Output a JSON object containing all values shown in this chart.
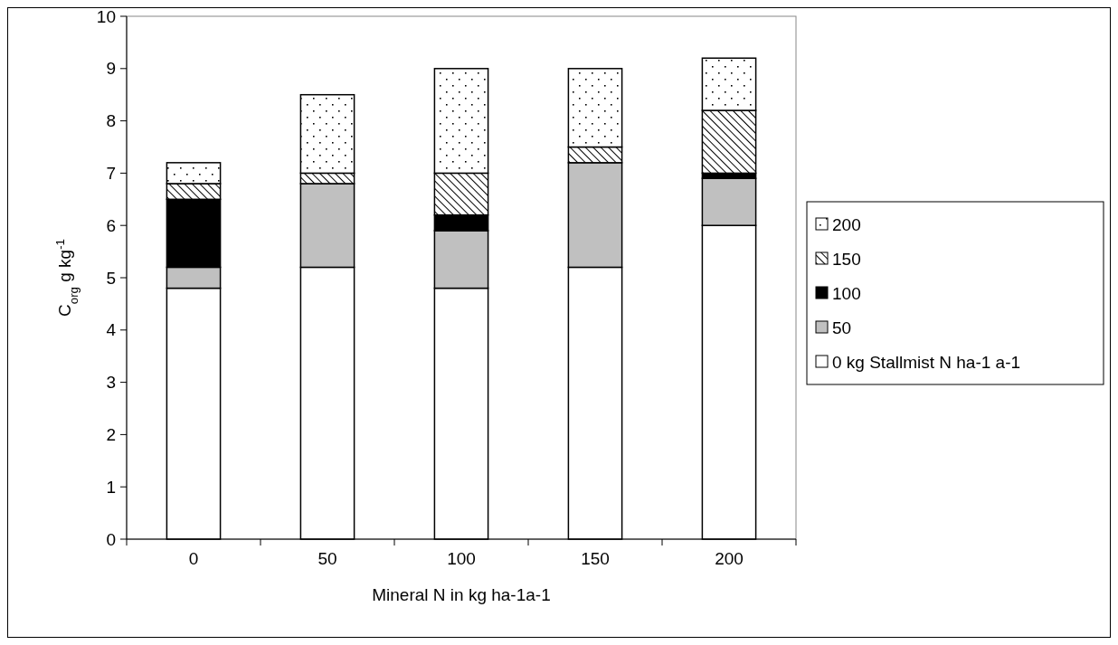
{
  "chart_data": {
    "type": "bar",
    "stacked": true,
    "xlabel": "Mineral N in kg ha-1a-1",
    "ylabel": "C$_{org}$ g kg$^{-1}$",
    "categories": [
      "0",
      "50",
      "100",
      "150",
      "200"
    ],
    "series": [
      {
        "name": "0 kg Stallmist N ha-1 a-1",
        "color": "#ffffff",
        "values": [
          4.8,
          5.2,
          4.8,
          5.2,
          6.0
        ]
      },
      {
        "name": "50",
        "color": "#c0c0c0",
        "values": [
          0.4,
          1.6,
          1.1,
          2.0,
          0.9
        ]
      },
      {
        "name": "100",
        "color": "#000000",
        "values": [
          1.3,
          0,
          0.3,
          0,
          0.1
        ]
      },
      {
        "name": "150",
        "color": "#000000",
        "values": [
          0.3,
          0.2,
          0.8,
          0.3,
          1.2
        ]
      },
      {
        "name": "200",
        "color": "#000000",
        "values": [
          0.4,
          1.5,
          2.0,
          1.5,
          1.0
        ]
      }
    ],
    "ylim": [
      0,
      10
    ],
    "yticks": [
      0,
      1,
      2,
      3,
      4,
      5,
      6,
      7,
      8,
      9,
      10
    ],
    "grid": false,
    "legend": "right"
  }
}
